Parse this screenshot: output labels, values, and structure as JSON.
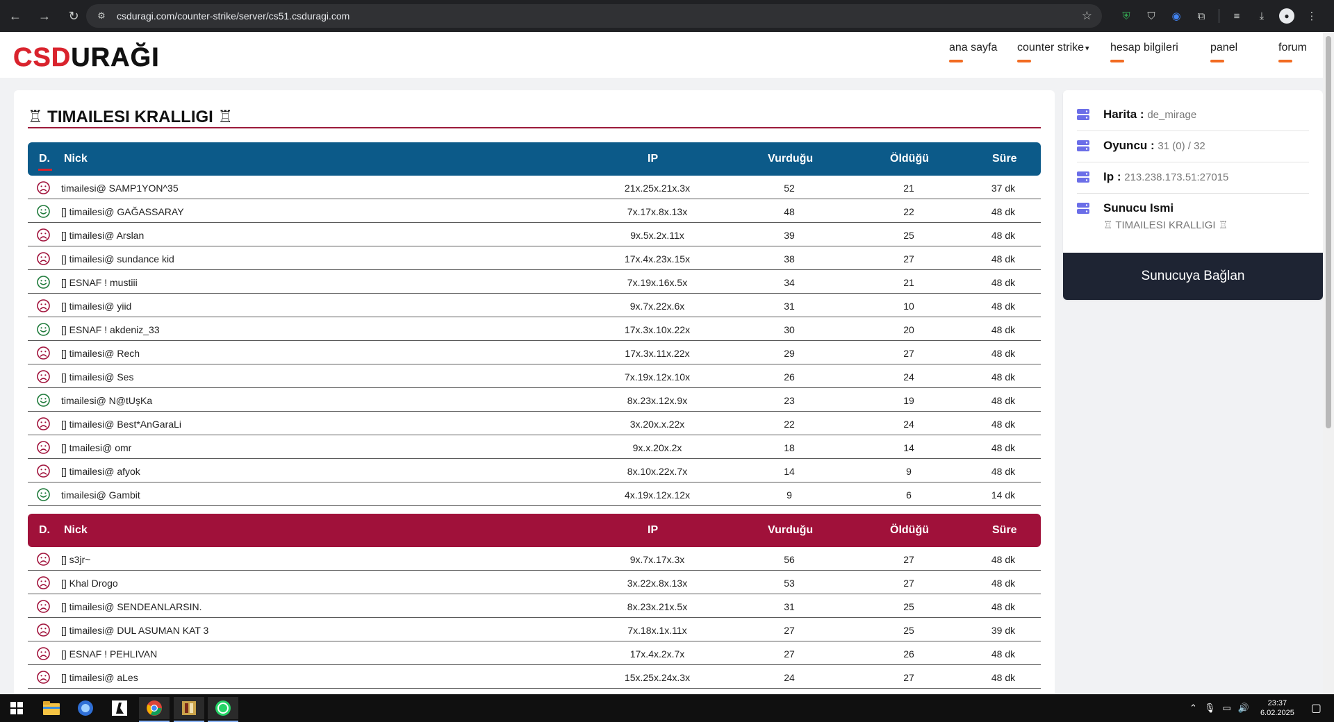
{
  "browser": {
    "url": "csduragi.com/counter-strike/server/cs51.csduragi.com"
  },
  "logo": {
    "part1": "CS",
    "part2": "D",
    "part3": "URAĞI"
  },
  "nav": [
    {
      "label": "ana sayfa"
    },
    {
      "label": "counter strike"
    },
    {
      "label": "hesap bilgileri"
    },
    {
      "label": "panel"
    },
    {
      "label": "forum"
    }
  ],
  "server": {
    "title": "♖ TIMAILESI KRALLIGI ♖"
  },
  "table_headers": {
    "d": "D.",
    "nick": "Nick",
    "ip": "IP",
    "hits": "Vurduğu",
    "deaths": "Öldüğü",
    "time": "Süre"
  },
  "team_t": [
    {
      "face": "sad",
      "nick": "timailesi@ SAMP1YON^35",
      "ip": "21x.25x.21x.3x",
      "hits": "52",
      "deaths": "21",
      "time": "37 dk"
    },
    {
      "face": "happy",
      "nick": "[] timailesi@ GAĞASSARAY",
      "ip": "7x.17x.8x.13x",
      "hits": "48",
      "deaths": "22",
      "time": "48 dk"
    },
    {
      "face": "sad",
      "nick": "[] timailesi@ Arslan",
      "ip": "9x.5x.2x.11x",
      "hits": "39",
      "deaths": "25",
      "time": "48 dk"
    },
    {
      "face": "sad",
      "nick": "[] timailesi@ sundance kid",
      "ip": "17x.4x.23x.15x",
      "hits": "38",
      "deaths": "27",
      "time": "48 dk"
    },
    {
      "face": "happy",
      "nick": "[] ESNAF ! mustiii",
      "ip": "7x.19x.16x.5x",
      "hits": "34",
      "deaths": "21",
      "time": "48 dk"
    },
    {
      "face": "sad",
      "nick": "[] timailesi@ yiid",
      "ip": "9x.7x.22x.6x",
      "hits": "31",
      "deaths": "10",
      "time": "48 dk"
    },
    {
      "face": "happy",
      "nick": "[] ESNAF ! akdeniz_33",
      "ip": "17x.3x.10x.22x",
      "hits": "30",
      "deaths": "20",
      "time": "48 dk"
    },
    {
      "face": "sad",
      "nick": "[] timailesi@ Rech",
      "ip": "17x.3x.11x.22x",
      "hits": "29",
      "deaths": "27",
      "time": "48 dk"
    },
    {
      "face": "sad",
      "nick": "[] timailesi@ Ses",
      "ip": "7x.19x.12x.10x",
      "hits": "26",
      "deaths": "24",
      "time": "48 dk"
    },
    {
      "face": "happy",
      "nick": "timailesi@ N@tUşKa",
      "ip": "8x.23x.12x.9x",
      "hits": "23",
      "deaths": "19",
      "time": "48 dk"
    },
    {
      "face": "sad",
      "nick": "[] timailesi@ Best*AnGaraLi",
      "ip": "3x.20x.x.22x",
      "hits": "22",
      "deaths": "24",
      "time": "48 dk"
    },
    {
      "face": "sad",
      "nick": "[] tmailesi@ omr",
      "ip": "9x.x.20x.2x",
      "hits": "18",
      "deaths": "14",
      "time": "48 dk"
    },
    {
      "face": "sad",
      "nick": "[] timailesi@ afyok",
      "ip": "8x.10x.22x.7x",
      "hits": "14",
      "deaths": "9",
      "time": "48 dk"
    },
    {
      "face": "happy",
      "nick": "timailesi@ Gambit",
      "ip": "4x.19x.12x.12x",
      "hits": "9",
      "deaths": "6",
      "time": "14 dk"
    }
  ],
  "team_ct": [
    {
      "face": "sad",
      "nick": "[] s3jr~",
      "ip": "9x.7x.17x.3x",
      "hits": "56",
      "deaths": "27",
      "time": "48 dk"
    },
    {
      "face": "sad",
      "nick": "[] Khal Drogo",
      "ip": "3x.22x.8x.13x",
      "hits": "53",
      "deaths": "27",
      "time": "48 dk"
    },
    {
      "face": "sad",
      "nick": "[] timailesi@ SENDEANLARSIN.",
      "ip": "8x.23x.21x.5x",
      "hits": "31",
      "deaths": "25",
      "time": "48 dk"
    },
    {
      "face": "sad",
      "nick": "[] timailesi@ DUL ASUMAN KAT 3",
      "ip": "7x.18x.1x.11x",
      "hits": "27",
      "deaths": "25",
      "time": "39 dk"
    },
    {
      "face": "sad",
      "nick": "[] ESNAF ! PEHLIVAN",
      "ip": "17x.4x.2x.7x",
      "hits": "27",
      "deaths": "26",
      "time": "48 dk"
    },
    {
      "face": "sad",
      "nick": "[] timailesi@ aLes",
      "ip": "15x.25x.24x.3x",
      "hits": "24",
      "deaths": "27",
      "time": "48 dk"
    }
  ],
  "side": {
    "map_label": "Harita :",
    "map_value": "de_mirage",
    "players_label": "Oyuncu :",
    "players_value": "31 (0) / 32",
    "ip_label": "Ip :",
    "ip_value": "213.238.173.51:27015",
    "name_label": "Sunucu Ismi",
    "name_value": "♖ TIMAILESI KRALLIGI ♖",
    "connect_label": "Sunucuya Bağlan"
  },
  "colors": {
    "accent_orange": "#f26b21",
    "team_t_header": "#0c5a89",
    "team_ct_header": "#a0113a",
    "sad_face": "#a0113a",
    "happy_face": "#1e7a3a",
    "server_icon": "#6b6ee8"
  },
  "taskbar": {
    "time": "23:37",
    "date": "6.02.2025"
  }
}
